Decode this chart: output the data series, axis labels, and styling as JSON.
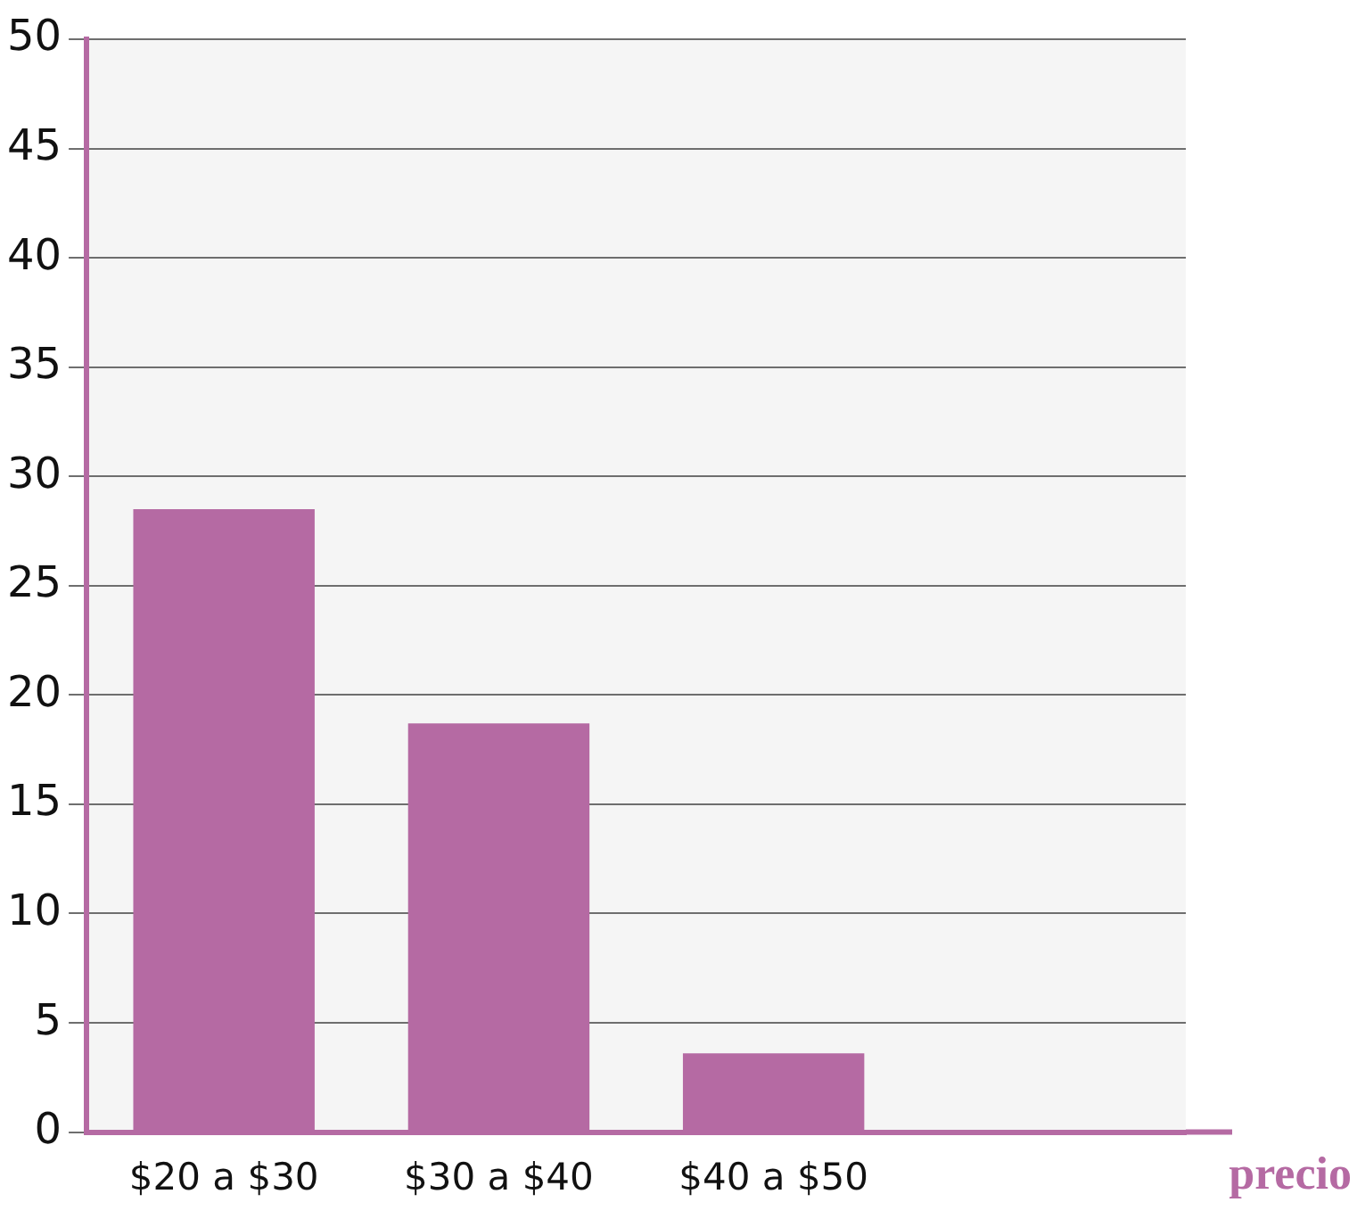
{
  "chart_data": {
    "type": "bar",
    "xlabel": "precio",
    "categories": [
      "$20 a $30",
      "$30 a $40",
      "$40 a $50",
      null
    ],
    "values": [
      28.5,
      18.7,
      3.6,
      null
    ],
    "color": "#b56aa3",
    "ylim": [
      0,
      50
    ],
    "yticks": [
      0,
      5,
      10,
      15,
      20,
      25,
      30,
      35,
      40,
      45,
      50
    ],
    "grid": "y"
  }
}
